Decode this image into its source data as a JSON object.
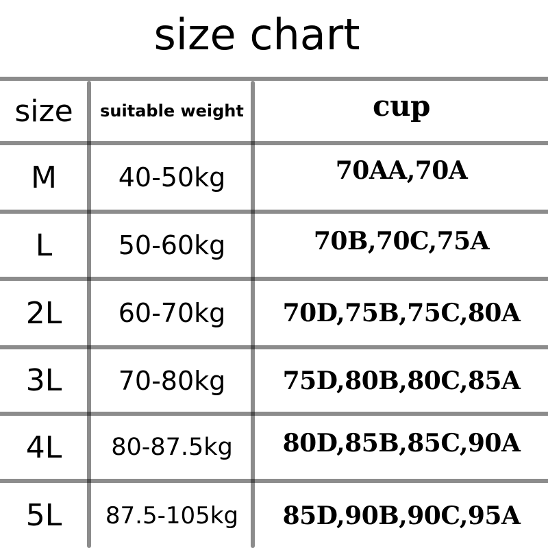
{
  "title": "size chart",
  "headers": {
    "size": "size",
    "weight": "suitable weight",
    "cup": "cup"
  },
  "rows": [
    {
      "size": "M",
      "weight": "40-50kg",
      "cup": "70AA,70A"
    },
    {
      "size": "L",
      "weight": "50-60kg",
      "cup": "70B,70C,75A"
    },
    {
      "size": "2L",
      "weight": "60-70kg",
      "cup": "70D,75B,75C,80A"
    },
    {
      "size": "3L",
      "weight": "70-80kg",
      "cup": "75D,80B,80C,85A"
    },
    {
      "size": "4L",
      "weight": "80-87.5kg",
      "cup": "80D,85B,85C,90A"
    },
    {
      "size": "5L",
      "weight": "87.5-105kg",
      "cup": "85D,90B,90C,95A"
    }
  ]
}
